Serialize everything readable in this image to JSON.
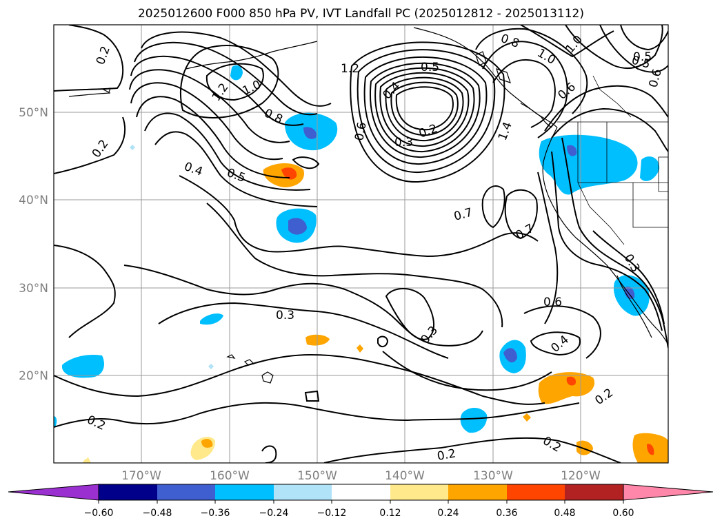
{
  "title": "2025012600 F000 850 hPa PV, IVT Landfall PC (2025012812 - 2025013112)",
  "latitude_labels": [
    "50°N",
    "40°N",
    "30°N",
    "20°N"
  ],
  "longitude_labels": [
    "170°W",
    "160°W",
    "150°W",
    "140°W",
    "130°W",
    "120°W"
  ],
  "contour_labels": [
    "0.2",
    "1.2",
    "1.0",
    "0.8",
    "0.5",
    "0.4",
    "0.6",
    "0.3",
    "0.2",
    "1.2",
    "0.4",
    "0.5",
    "0.7",
    "0.7",
    "0.8",
    "1.0",
    "1.0",
    "0.5",
    "0.6",
    "1.4",
    "0.3",
    "0.3",
    "0.6",
    "0.4",
    "0.2",
    "0.2",
    "0.2",
    "0.2",
    "0.2",
    "0.3",
    "0.5",
    "0.6"
  ],
  "colorbar": {
    "ticks": [
      "−0.60",
      "−0.48",
      "−0.36",
      "−0.24",
      "−0.12",
      "0.12",
      "0.24",
      "0.36",
      "0.48",
      "0.60"
    ],
    "colors": [
      "#9b30d0",
      "#00008b",
      "#3f5fd0",
      "#00bfff",
      "#b0e2f8",
      "#ffffff",
      "#ffe98a",
      "#ffa500",
      "#ff4500",
      "#b22222",
      "#ff88aa"
    ]
  }
}
